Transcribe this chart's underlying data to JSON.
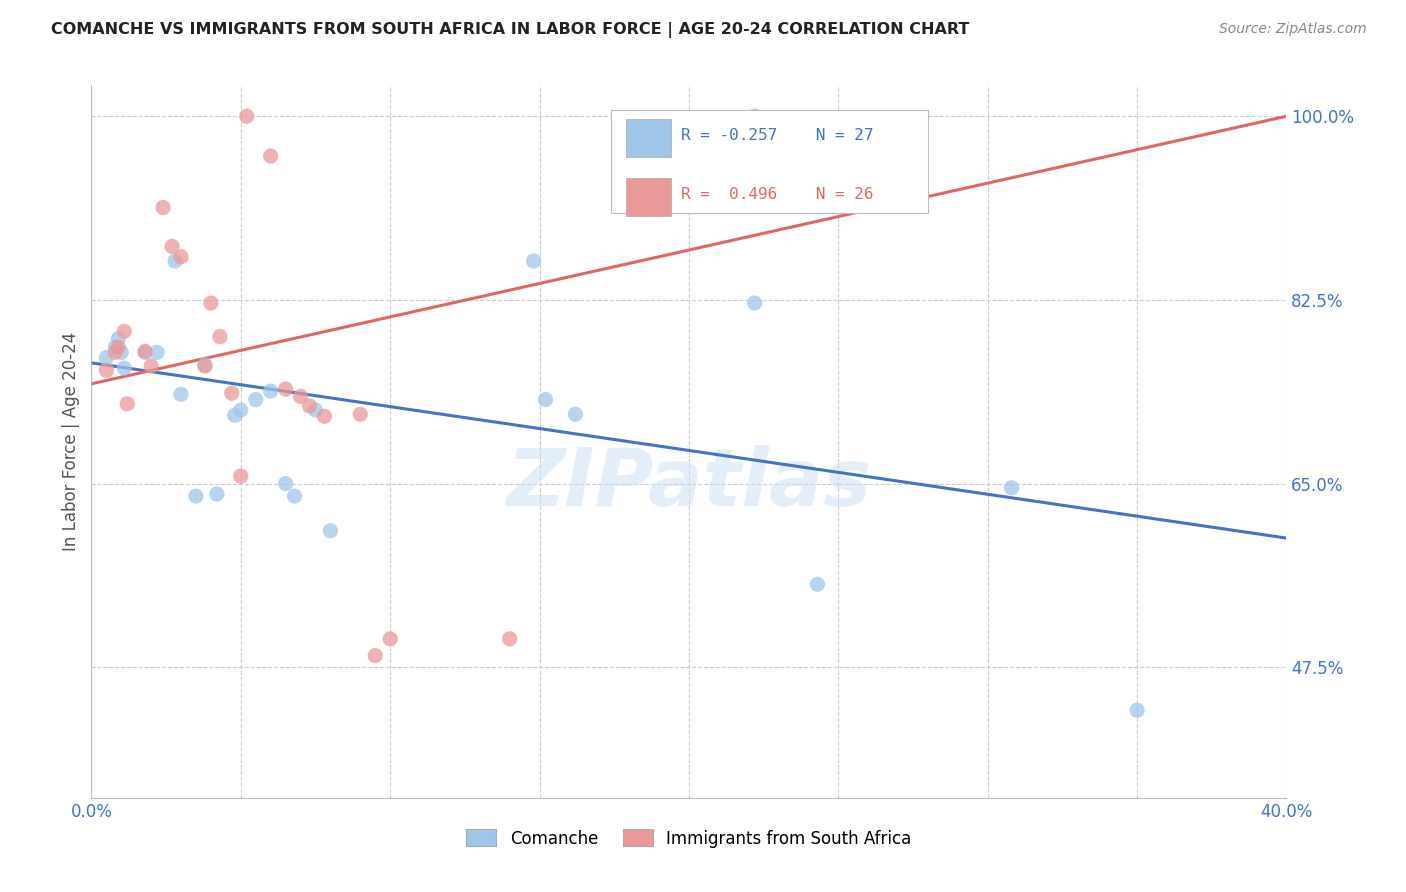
{
  "title": "COMANCHE VS IMMIGRANTS FROM SOUTH AFRICA IN LABOR FORCE | AGE 20-24 CORRELATION CHART",
  "source": "Source: ZipAtlas.com",
  "ylabel": "In Labor Force | Age 20-24",
  "legend_label1": "Comanche",
  "legend_label2": "Immigrants from South Africa",
  "r1": -0.257,
  "n1": 27,
  "r2": 0.496,
  "n2": 26,
  "xmin": 0.0,
  "xmax": 0.4,
  "ymin": 0.35,
  "ymax": 1.03,
  "yticks": [
    0.475,
    0.65,
    0.825,
    1.0
  ],
  "ytick_labels": [
    "47.5%",
    "65.0%",
    "82.5%",
    "100.0%"
  ],
  "xticks": [
    0.0,
    0.05,
    0.1,
    0.15,
    0.2,
    0.25,
    0.3,
    0.35,
    0.4
  ],
  "xtick_labels": [
    "0.0%",
    "",
    "",
    "",
    "",
    "",
    "",
    "",
    "40.0%"
  ],
  "color_blue": "#9fc5e8",
  "color_pink": "#ea9999",
  "line_blue": "#4472c4",
  "line_pink": "#e06666",
  "watermark": "ZIPatlas",
  "blue_line_y0": 0.765,
  "blue_line_y1": 0.598,
  "pink_line_y0": 0.745,
  "pink_line_y1": 1.0,
  "comanche_x": [
    0.005,
    0.008,
    0.009,
    0.01,
    0.011,
    0.018,
    0.022,
    0.028,
    0.03,
    0.035,
    0.038,
    0.042,
    0.048,
    0.05,
    0.055,
    0.06,
    0.065,
    0.068,
    0.075,
    0.08,
    0.148,
    0.152,
    0.162,
    0.222,
    0.243,
    0.308,
    0.35
  ],
  "comanche_y": [
    0.77,
    0.78,
    0.788,
    0.775,
    0.76,
    0.775,
    0.775,
    0.862,
    0.735,
    0.638,
    0.763,
    0.64,
    0.715,
    0.72,
    0.73,
    0.738,
    0.65,
    0.638,
    0.72,
    0.605,
    0.862,
    0.73,
    0.716,
    0.822,
    0.554,
    0.646,
    0.434
  ],
  "sa_x": [
    0.005,
    0.008,
    0.009,
    0.011,
    0.012,
    0.018,
    0.02,
    0.024,
    0.027,
    0.03,
    0.038,
    0.04,
    0.043,
    0.047,
    0.05,
    0.052,
    0.06,
    0.065,
    0.07,
    0.073,
    0.078,
    0.09,
    0.095,
    0.1,
    0.14,
    0.222
  ],
  "sa_y": [
    0.758,
    0.775,
    0.78,
    0.795,
    0.726,
    0.776,
    0.762,
    0.913,
    0.876,
    0.866,
    0.762,
    0.822,
    0.79,
    0.736,
    0.657,
    1.0,
    0.962,
    0.74,
    0.733,
    0.724,
    0.714,
    0.716,
    0.486,
    0.502,
    0.502,
    1.0
  ]
}
